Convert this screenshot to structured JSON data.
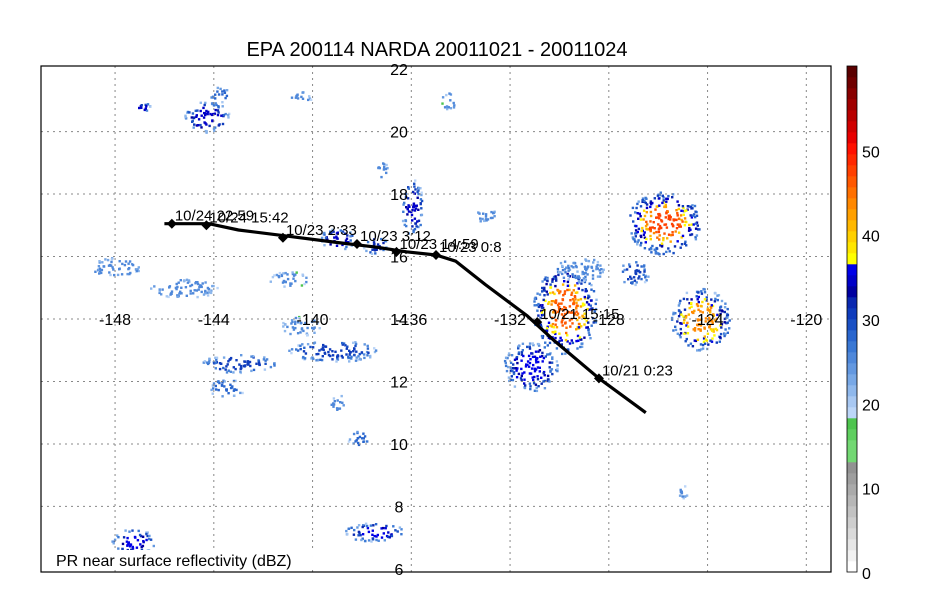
{
  "title": "EPA 200114 NARDA 20011021 - 20011024",
  "caption": "PR near surface reflectivity (dBZ)",
  "map": {
    "lon_range": [
      -151,
      -119
    ],
    "lat_range": [
      5.9,
      22.1
    ],
    "lon_ticks": [
      -148,
      -144,
      -140,
      -136,
      -132,
      -128,
      -124,
      -120
    ],
    "lon_tick_labels": [
      "-148",
      "-144",
      "-140",
      "-136",
      "-132",
      "-128",
      "-124",
      "-120"
    ],
    "lat_ticks": [
      6,
      8,
      10,
      12,
      14,
      16,
      18,
      20,
      22
    ],
    "lat_tick_labels": [
      "6",
      "8",
      "10",
      "12",
      "14",
      "16",
      "18",
      "20",
      "22"
    ],
    "grid_lons": [
      -148,
      -144,
      -140,
      -136,
      -132,
      -128,
      -124,
      -120
    ],
    "grid_lats": [
      8,
      10,
      12,
      14,
      16,
      18,
      20
    ],
    "label_lon": -136.5,
    "label_lat": 14.0,
    "colors": {
      "track": "#000000",
      "grid": "#888888",
      "frame": "#000000"
    }
  },
  "track": {
    "path": [
      [
        -126.5,
        11.0
      ],
      [
        -128.4,
        12.1
      ],
      [
        -130.2,
        13.3
      ],
      [
        -131.3,
        14.1
      ],
      [
        -133.0,
        15.1
      ],
      [
        -134.2,
        15.85
      ],
      [
        -135.0,
        16.05
      ],
      [
        -136.2,
        16.15
      ],
      [
        -137.4,
        16.3
      ],
      [
        -139.0,
        16.45
      ],
      [
        -141.0,
        16.65
      ],
      [
        -143.0,
        16.85
      ],
      [
        -144.2,
        17.05
      ],
      [
        -146.0,
        17.05
      ]
    ],
    "markers": [
      {
        "lon": -128.4,
        "lat": 12.1,
        "label": "10/21 0:23"
      },
      {
        "lon": -130.9,
        "lat": 13.9,
        "label": "10/21 15:15"
      },
      {
        "lon": -135.0,
        "lat": 16.05,
        "label": "10/23 0:8"
      },
      {
        "lon": -136.6,
        "lat": 16.15,
        "label": "10/23 14:59"
      },
      {
        "lon": -138.2,
        "lat": 16.4,
        "label": "10/23 3:12"
      },
      {
        "lon": -141.2,
        "lat": 16.6,
        "label": "10/23 2:33"
      },
      {
        "lon": -144.3,
        "lat": 17.0,
        "label": "10/24 15:42"
      },
      {
        "lon": -145.7,
        "lat": 17.05,
        "label": "10/24 22:59"
      }
    ]
  },
  "rain_cells": [
    {
      "lon": -129.8,
      "lat": 14.3,
      "rx": 1.3,
      "ry": 1.4,
      "peak": 42
    },
    {
      "lon": -129.2,
      "lat": 15.6,
      "rx": 1.0,
      "ry": 0.4,
      "peak": 22
    },
    {
      "lon": -131.2,
      "lat": 12.5,
      "rx": 1.1,
      "ry": 0.8,
      "peak": 32
    },
    {
      "lon": -125.8,
      "lat": 17.1,
      "rx": 1.5,
      "ry": 1.0,
      "peak": 44
    },
    {
      "lon": -124.3,
      "lat": 14.0,
      "rx": 1.2,
      "ry": 1.0,
      "peak": 40
    },
    {
      "lon": -127.0,
      "lat": 15.5,
      "rx": 0.6,
      "ry": 0.4,
      "peak": 26
    },
    {
      "lon": -144.3,
      "lat": 20.5,
      "rx": 0.9,
      "ry": 0.5,
      "peak": 30
    },
    {
      "lon": -146.9,
      "lat": 20.8,
      "rx": 0.3,
      "ry": 0.15,
      "peak": 30
    },
    {
      "lon": -143.8,
      "lat": 21.2,
      "rx": 0.4,
      "ry": 0.25,
      "peak": 24
    },
    {
      "lon": -136.0,
      "lat": 17.6,
      "rx": 0.45,
      "ry": 0.9,
      "peak": 30
    },
    {
      "lon": -139.0,
      "lat": 16.6,
      "rx": 0.7,
      "ry": 0.35,
      "peak": 30
    },
    {
      "lon": -137.5,
      "lat": 16.4,
      "rx": 0.5,
      "ry": 0.3,
      "peak": 28
    },
    {
      "lon": -147.3,
      "lat": 6.9,
      "rx": 0.9,
      "ry": 0.4,
      "peak": 32
    },
    {
      "lon": -137.5,
      "lat": 7.2,
      "rx": 1.2,
      "ry": 0.3,
      "peak": 32
    },
    {
      "lon": -143.0,
      "lat": 12.6,
      "rx": 1.5,
      "ry": 0.3,
      "peak": 26
    },
    {
      "lon": -139.2,
      "lat": 13.0,
      "rx": 1.8,
      "ry": 0.35,
      "peak": 26
    },
    {
      "lon": -143.5,
      "lat": 11.8,
      "rx": 0.7,
      "ry": 0.3,
      "peak": 24
    },
    {
      "lon": -140.5,
      "lat": 13.8,
      "rx": 0.8,
      "ry": 0.3,
      "peak": 22
    },
    {
      "lon": -138.2,
      "lat": 10.2,
      "rx": 0.4,
      "ry": 0.3,
      "peak": 24
    },
    {
      "lon": -139.0,
      "lat": 11.3,
      "rx": 0.3,
      "ry": 0.3,
      "peak": 22
    },
    {
      "lon": -145.2,
      "lat": 15.0,
      "rx": 1.4,
      "ry": 0.3,
      "peak": 22
    },
    {
      "lon": -148.0,
      "lat": 15.7,
      "rx": 1.0,
      "ry": 0.3,
      "peak": 22
    },
    {
      "lon": -141.0,
      "lat": 15.3,
      "rx": 0.8,
      "ry": 0.25,
      "peak": 22
    },
    {
      "lon": -133.0,
      "lat": 17.4,
      "rx": 0.4,
      "ry": 0.3,
      "peak": 22
    },
    {
      "lon": -137.2,
      "lat": 18.8,
      "rx": 0.2,
      "ry": 0.3,
      "peak": 22
    },
    {
      "lon": -140.5,
      "lat": 21.1,
      "rx": 0.4,
      "ry": 0.2,
      "peak": 22
    },
    {
      "lon": -134.5,
      "lat": 21.0,
      "rx": 0.3,
      "ry": 0.3,
      "peak": 22
    },
    {
      "lon": -125.0,
      "lat": 8.5,
      "rx": 0.2,
      "ry": 0.2,
      "peak": 22
    }
  ],
  "colorbar": {
    "min": 0,
    "max": 60,
    "tick_values": [
      0,
      10,
      20,
      30,
      40,
      50
    ],
    "tick_labels": [
      "0",
      "10",
      "20",
      "30",
      "40",
      "50"
    ],
    "colors": [
      "#ffffff",
      "#f2f2f2",
      "#e6e6e6",
      "#dadada",
      "#cecece",
      "#c2c2c2",
      "#b6b6b6",
      "#aaaaaa",
      "#9e9e9e",
      "#929292",
      "#73d873",
      "#73d873",
      "#5fcf5f",
      "#4ec44e",
      "#bcd6f8",
      "#a8c8f2",
      "#8fb8ec",
      "#78a8e6",
      "#6398e0",
      "#4f88da",
      "#3a78d4",
      "#2a66ce",
      "#1a50c4",
      "#0f3cbc",
      "#0a28b0",
      "#0000a0",
      "#0000c8",
      "#0000e8",
      "#ffff00",
      "#ffe600",
      "#ffd000",
      "#ffb800",
      "#ffa000",
      "#ff8800",
      "#ff7000",
      "#ff5800",
      "#ff4000",
      "#ff2800",
      "#ff1000",
      "#e80000",
      "#d00000",
      "#b80000",
      "#a00000",
      "#880000",
      "#700000",
      "#5a0000"
    ]
  }
}
